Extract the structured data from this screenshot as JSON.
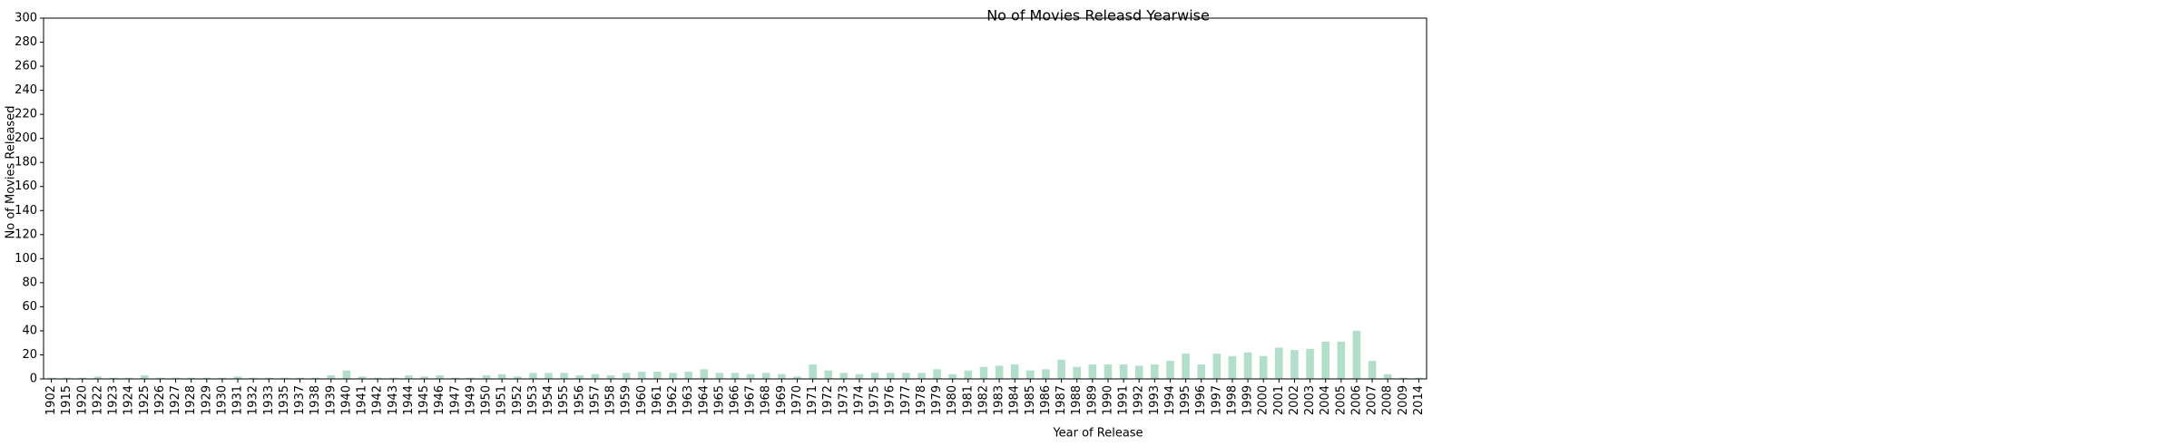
{
  "chart_data": {
    "type": "bar",
    "title": "No of Movies Releasd Yearwise",
    "xlabel": "Year of Release",
    "ylabel": "No of Movies Released",
    "ylim": [
      0,
      300
    ],
    "yticks": [
      0,
      20,
      40,
      60,
      80,
      100,
      120,
      140,
      160,
      180,
      200,
      220,
      240,
      260,
      280,
      300
    ],
    "grid": false,
    "bar_color": "#b2dfcc",
    "categories": [
      "1902",
      "1915",
      "1920",
      "1922",
      "1923",
      "1924",
      "1925",
      "1926",
      "1927",
      "1928",
      "1929",
      "1930",
      "1931",
      "1932",
      "1933",
      "1935",
      "1937",
      "1938",
      "1939",
      "1940",
      "1941",
      "1942",
      "1943",
      "1944",
      "1945",
      "1946",
      "1947",
      "1949",
      "1950",
      "1951",
      "1952",
      "1953",
      "1954",
      "1955",
      "1956",
      "1957",
      "1958",
      "1959",
      "1960",
      "1961",
      "1962",
      "1963",
      "1964",
      "1965",
      "1966",
      "1967",
      "1968",
      "1969",
      "1970",
      "1971",
      "1972",
      "1973",
      "1974",
      "1975",
      "1976",
      "1977",
      "1978",
      "1979",
      "1980",
      "1981",
      "1982",
      "1983",
      "1984",
      "1985",
      "1986",
      "1987",
      "1988",
      "1989",
      "1990",
      "1991",
      "1992",
      "1993",
      "1994",
      "1995",
      "1996",
      "1997",
      "1998",
      "1999",
      "2000",
      "2001",
      "2002",
      "2003",
      "2004",
      "2005",
      "2006",
      "2007",
      "2008",
      "2009",
      "2014"
    ],
    "values": [
      1,
      1,
      1,
      2,
      1,
      1,
      3,
      1,
      1,
      1,
      1,
      1,
      2,
      1,
      1,
      1,
      1,
      1,
      3,
      7,
      2,
      1,
      1,
      3,
      2,
      3,
      1,
      1,
      3,
      4,
      2,
      5,
      5,
      5,
      3,
      4,
      3,
      5,
      6,
      6,
      5,
      6,
      8,
      5,
      5,
      4,
      5,
      4,
      2,
      12,
      7,
      5,
      4,
      5,
      5,
      5,
      5,
      8,
      4,
      7,
      10,
      11,
      12,
      7,
      8,
      16,
      10,
      12,
      12,
      12,
      11,
      12,
      15,
      21,
      12,
      21,
      19,
      22,
      19,
      26,
      24,
      25,
      31,
      31,
      40,
      15,
      4,
      1,
      1
    ]
  }
}
